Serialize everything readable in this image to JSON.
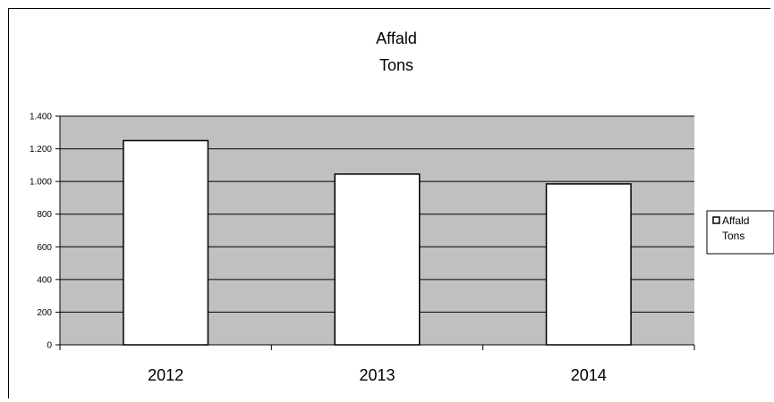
{
  "chart_data": {
    "type": "bar",
    "title_lines": [
      "Affald",
      "Tons"
    ],
    "categories": [
      "2012",
      "2013",
      "2014"
    ],
    "series": [
      {
        "name": "Affald Tons",
        "legend_lines": [
          "Affald",
          "Tons"
        ],
        "values": [
          1250,
          1045,
          985
        ]
      }
    ],
    "ylim": [
      0,
      1400
    ],
    "yticks": [
      0,
      200,
      400,
      600,
      800,
      1000,
      1200,
      1400
    ],
    "ytick_labels": [
      "0",
      "200",
      "400",
      "600",
      "800",
      "1.000",
      "1.200",
      "1.400"
    ],
    "grid": true,
    "legend": "right",
    "colors": {
      "plot_bg": "#c0c0c0",
      "bar_fill": "#ffffff",
      "bar_stroke": "#000000",
      "gridline": "#000000"
    }
  }
}
